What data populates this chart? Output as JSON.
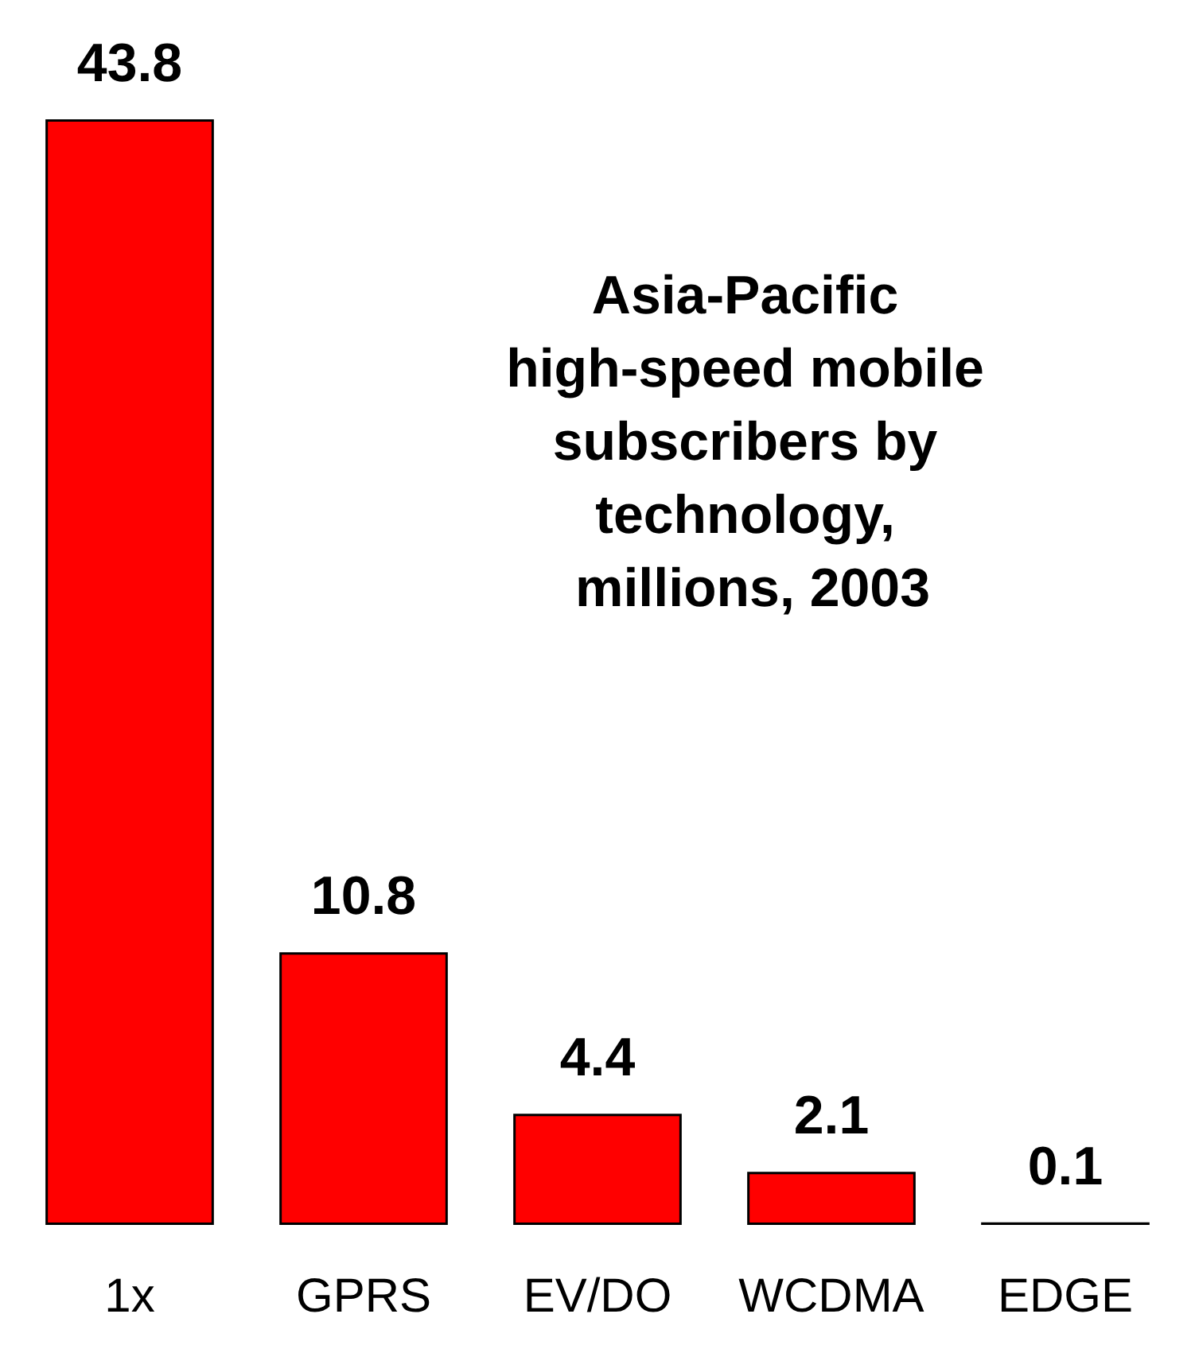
{
  "chart_data": {
    "type": "bar",
    "title": "Asia-Pacific high-speed mobile subscribers by technology, millions, 2003",
    "categories": [
      "1x",
      "GPRS",
      "EV/DO",
      "WCDMA",
      "EDGE"
    ],
    "values": [
      43.8,
      10.8,
      4.4,
      2.1,
      0.1
    ],
    "color": "#ff0000",
    "data_labels": true
  }
}
